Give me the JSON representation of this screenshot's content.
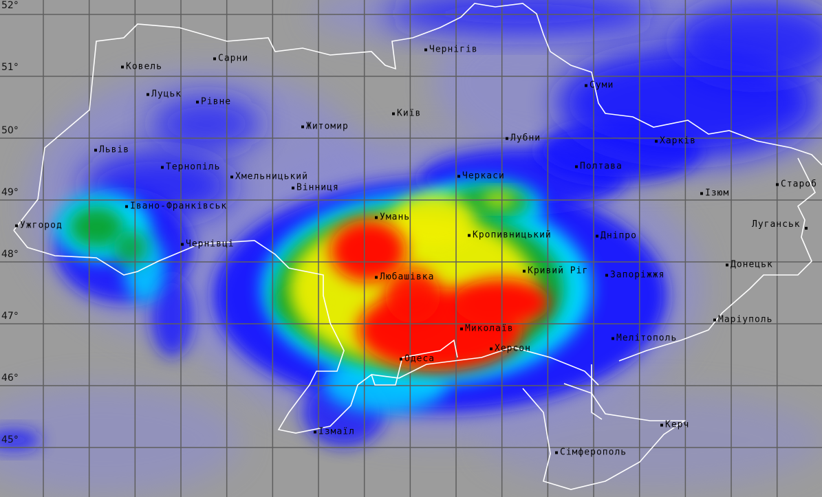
{
  "map": {
    "latitude_labels": [
      "52°",
      "51°",
      "50°",
      "49°",
      "48°",
      "47°",
      "46°",
      "45°"
    ],
    "colors": {
      "background": "#9c9c9c",
      "grid": "#5e5e5e",
      "border": "#ffffff",
      "blue": "#1818ff",
      "cyan": "#00e0ff",
      "green": "#10a020",
      "yellow": "#f0f000",
      "red": "#ff1000"
    },
    "cities": [
      {
        "name": "Ковель"
      },
      {
        "name": "Сарни"
      },
      {
        "name": "Чернігів"
      },
      {
        "name": "Луцьк"
      },
      {
        "name": "Рівне"
      },
      {
        "name": "Київ"
      },
      {
        "name": "Суми"
      },
      {
        "name": "Житомир"
      },
      {
        "name": "Лубни"
      },
      {
        "name": "Львів"
      },
      {
        "name": "Харків"
      },
      {
        "name": "Тернопіль"
      },
      {
        "name": "Хмельницький"
      },
      {
        "name": "Полтава"
      },
      {
        "name": "Вінниця"
      },
      {
        "name": "Черкаси"
      },
      {
        "name": "Ізюм"
      },
      {
        "name": "Староб"
      },
      {
        "name": "Івано-Франківськ"
      },
      {
        "name": "Ужгород"
      },
      {
        "name": "Умань"
      },
      {
        "name": "Кропивницький"
      },
      {
        "name": "Дніпро"
      },
      {
        "name": "Луганськ"
      },
      {
        "name": "Чернівці"
      },
      {
        "name": "Донецьк"
      },
      {
        "name": "Любашівка"
      },
      {
        "name": "Кривий Ріг"
      },
      {
        "name": "Запоріжжя"
      },
      {
        "name": "Маріуполь"
      },
      {
        "name": "Миколаїв"
      },
      {
        "name": "Мелітополь"
      },
      {
        "name": "Херсон"
      },
      {
        "name": "Одеса"
      },
      {
        "name": "Ізмаїл"
      },
      {
        "name": "Керч"
      },
      {
        "name": "Сімферополь"
      }
    ]
  }
}
